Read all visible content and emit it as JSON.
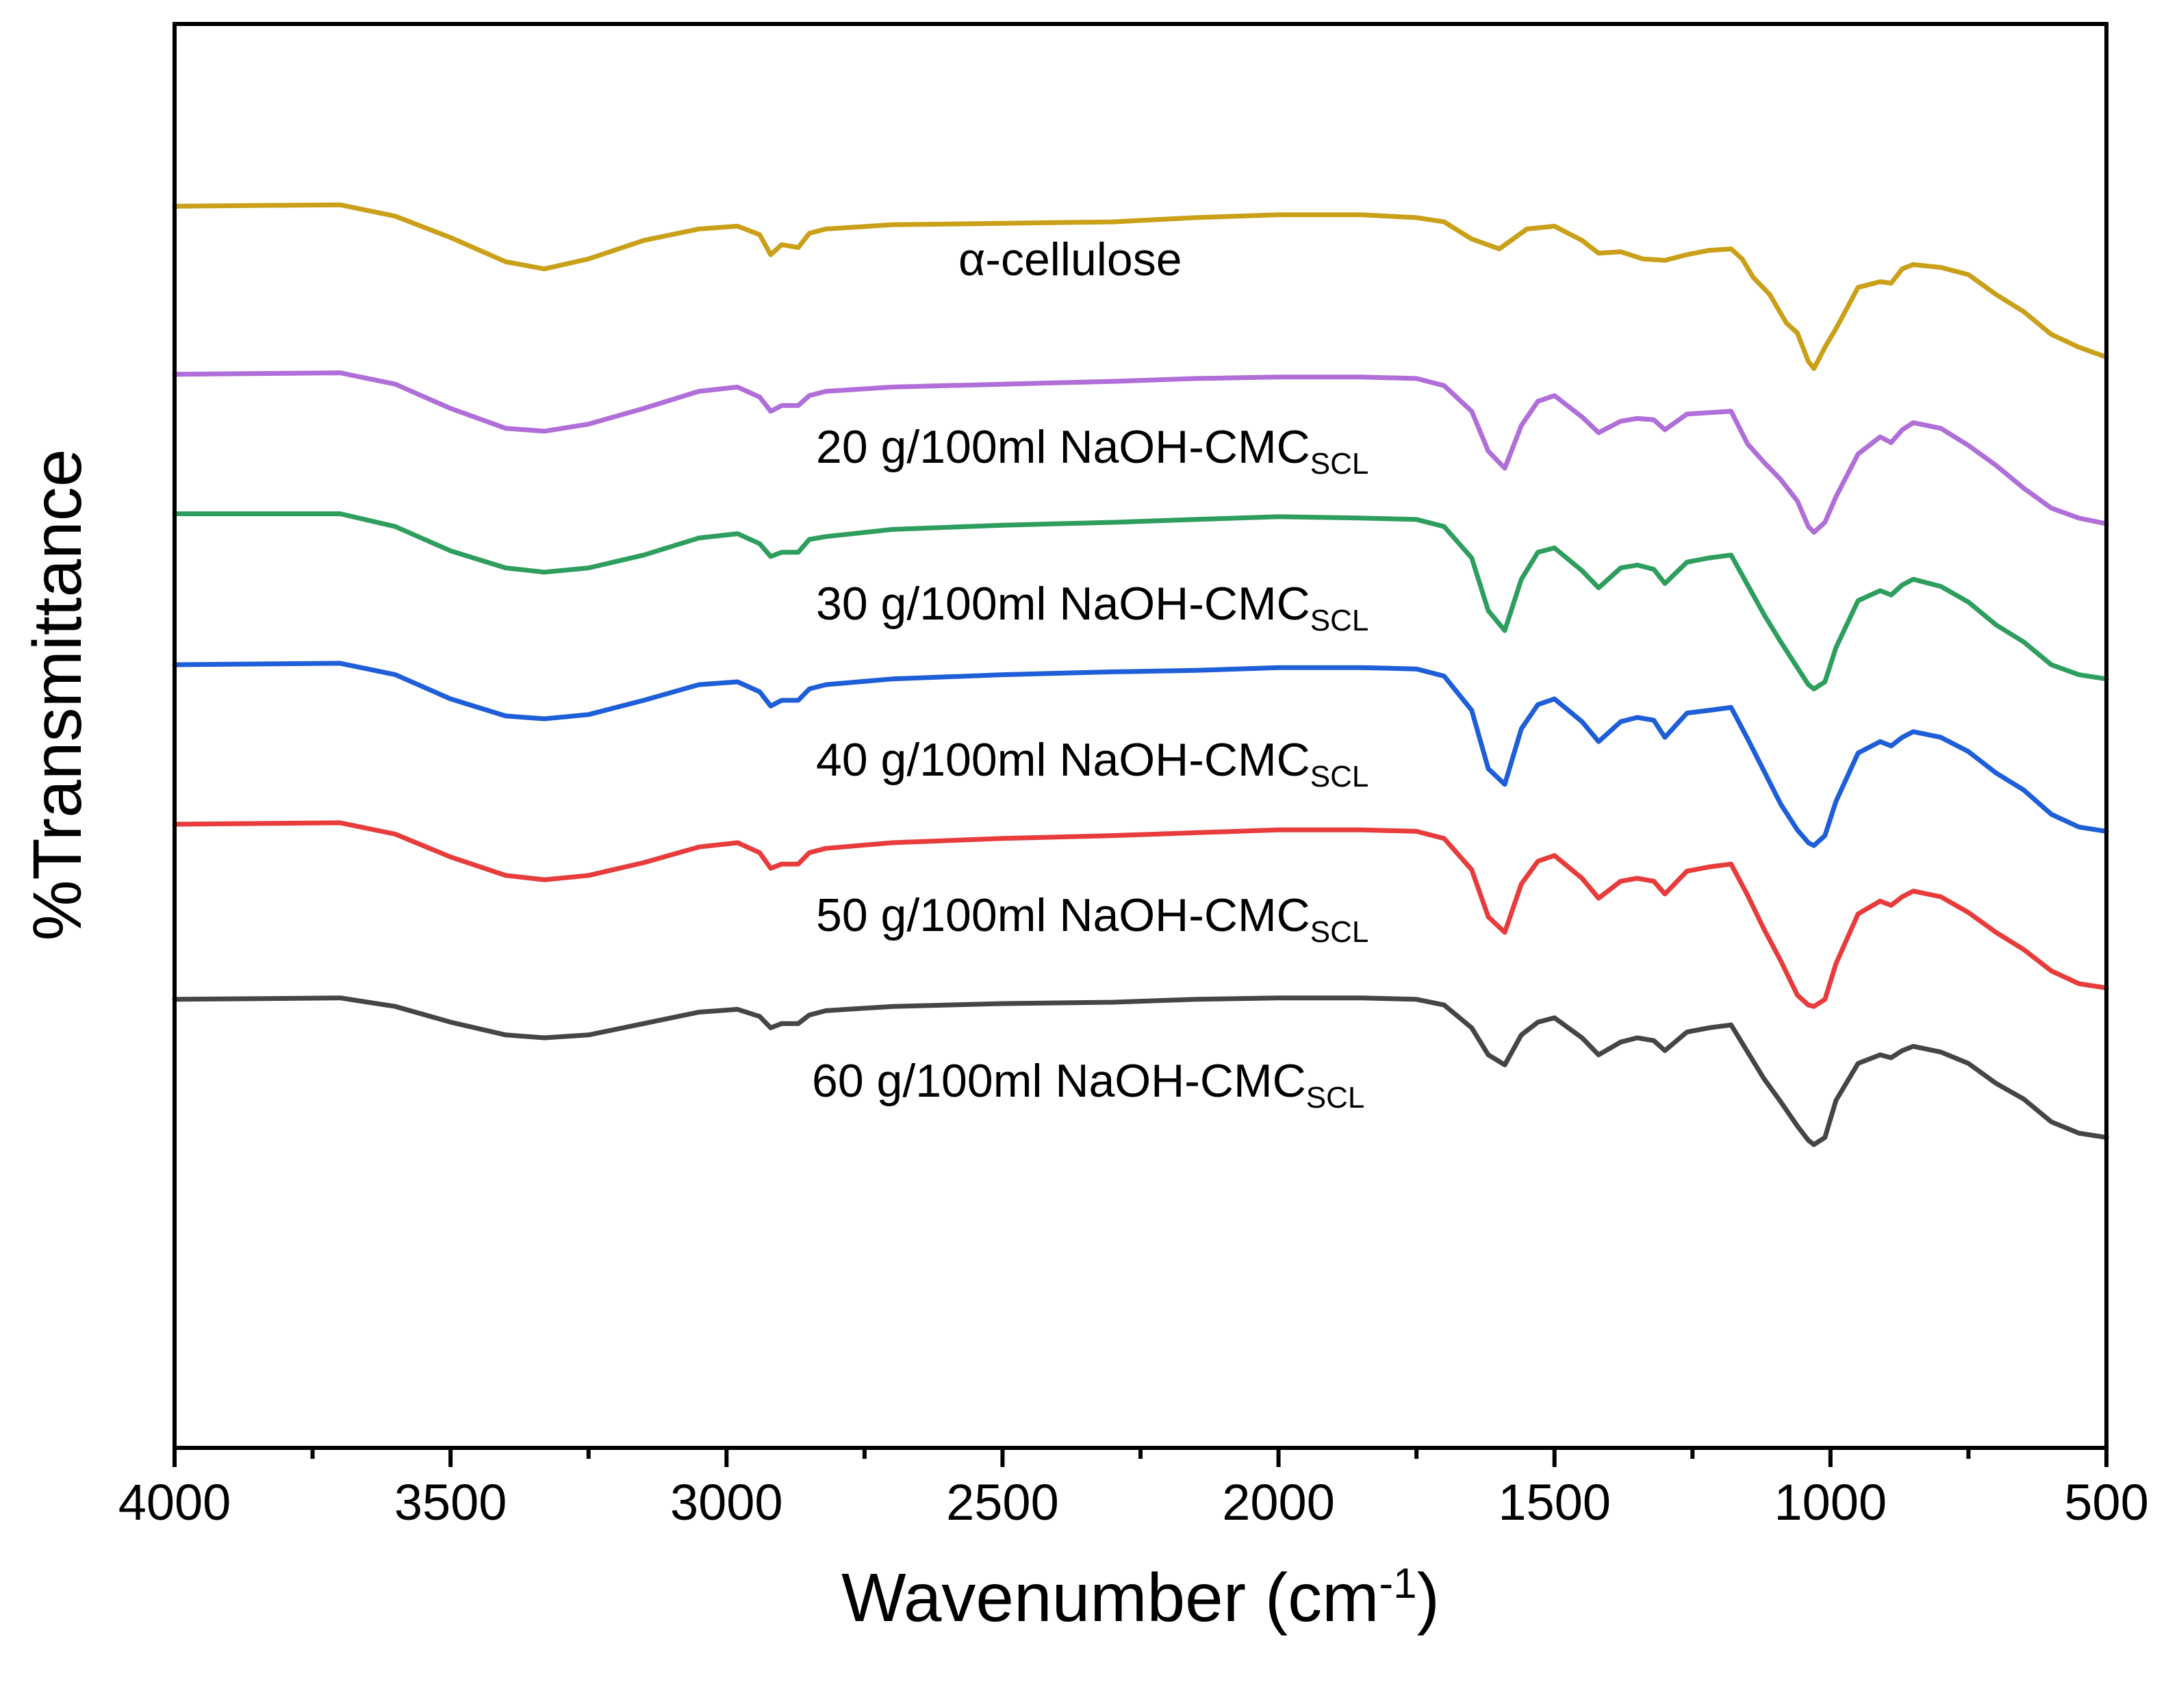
{
  "chart_data": {
    "type": "line",
    "title": "",
    "xlabel": "Wavenumber (cm",
    "xlabel_superscript": "-1",
    "xlabel_suffix": ")",
    "ylabel": "%Transmittance",
    "xlim": [
      4000,
      500
    ],
    "ylim": [
      0,
      100
    ],
    "x_reversed": true,
    "y_ticks_labeled": false,
    "x_ticks": [
      "4000",
      "3500",
      "3000",
      "2500",
      "2000",
      "1500",
      "1000",
      "500"
    ],
    "x_tick_values": [
      4000,
      3500,
      3000,
      2500,
      2000,
      1500,
      1000,
      500
    ],
    "minor_x_ticks": [
      3750,
      3250,
      2750,
      2250,
      1750,
      1250,
      750
    ],
    "grid": false,
    "legend": "inline labels next to each trace",
    "series": [
      {
        "name": "α-cellulose",
        "label_main": "α-cellulose",
        "label_sub": "",
        "color": "#C9A018",
        "x": [
          4000,
          3700,
          3600,
          3500,
          3400,
          3330,
          3250,
          3150,
          3050,
          2980,
          2940,
          2920,
          2900,
          2870,
          2850,
          2820,
          2700,
          2500,
          2300,
          2150,
          2000,
          1850,
          1750,
          1700,
          1650,
          1600,
          1550,
          1500,
          1450,
          1420,
          1380,
          1340,
          1300,
          1260,
          1220,
          1180,
          1160,
          1140,
          1110,
          1080,
          1060,
          1040,
          1030,
          1010,
          990,
          950,
          910,
          890,
          870,
          850,
          800,
          750,
          700,
          650,
          600,
          550,
          500
        ],
        "values": [
          87.2,
          87.3,
          86.5,
          85.0,
          83.3,
          82.8,
          83.5,
          84.8,
          85.6,
          85.8,
          85.2,
          83.8,
          84.5,
          84.3,
          85.3,
          85.6,
          85.9,
          86.0,
          86.1,
          86.4,
          86.6,
          86.6,
          86.4,
          86.1,
          84.9,
          84.2,
          85.6,
          85.8,
          84.8,
          83.9,
          84.0,
          83.5,
          83.4,
          83.8,
          84.1,
          84.2,
          83.5,
          82.2,
          81.0,
          79.0,
          78.3,
          76.3,
          75.8,
          77.3,
          78.6,
          81.5,
          81.9,
          81.8,
          82.8,
          83.1,
          82.9,
          82.4,
          81.0,
          79.8,
          78.2,
          77.3,
          76.6
        ]
      },
      {
        "name": "20 g/100ml NaOH-CMC_SCL",
        "label_main": "20 g/100ml NaOH-CMC",
        "label_sub": "SCL",
        "color": "#B06ED8",
        "x": [
          4000,
          3700,
          3600,
          3500,
          3400,
          3330,
          3250,
          3150,
          3050,
          2980,
          2940,
          2920,
          2900,
          2870,
          2850,
          2820,
          2700,
          2500,
          2300,
          2150,
          2000,
          1850,
          1750,
          1700,
          1650,
          1620,
          1590,
          1560,
          1530,
          1500,
          1450,
          1420,
          1380,
          1350,
          1320,
          1300,
          1260,
          1220,
          1180,
          1150,
          1120,
          1090,
          1060,
          1040,
          1030,
          1010,
          990,
          950,
          910,
          890,
          870,
          850,
          800,
          750,
          700,
          650,
          600,
          550,
          500
        ],
        "values": [
          75.4,
          75.5,
          74.7,
          73.0,
          71.6,
          71.4,
          71.9,
          73.0,
          74.2,
          74.5,
          73.8,
          72.8,
          73.2,
          73.2,
          73.9,
          74.2,
          74.5,
          74.7,
          74.9,
          75.1,
          75.2,
          75.2,
          75.1,
          74.6,
          72.8,
          70.0,
          68.8,
          71.8,
          73.5,
          73.9,
          72.4,
          71.3,
          72.1,
          72.3,
          72.2,
          71.5,
          72.6,
          72.7,
          72.8,
          70.5,
          69.2,
          68.0,
          66.5,
          64.7,
          64.3,
          65.0,
          66.8,
          69.8,
          71.0,
          70.6,
          71.5,
          72.0,
          71.6,
          70.4,
          69.0,
          67.4,
          66.0,
          65.3,
          64.9
        ]
      },
      {
        "name": "30 g/100ml NaOH-CMC_SCL",
        "label_main": "30 g/100ml NaOH-CMC",
        "label_sub": "SCL",
        "color": "#2E9E5E",
        "x": [
          4000,
          3700,
          3600,
          3500,
          3400,
          3330,
          3250,
          3150,
          3050,
          2980,
          2940,
          2920,
          2900,
          2870,
          2850,
          2820,
          2700,
          2500,
          2300,
          2150,
          2000,
          1850,
          1750,
          1700,
          1650,
          1620,
          1590,
          1560,
          1530,
          1500,
          1450,
          1420,
          1380,
          1350,
          1320,
          1300,
          1260,
          1220,
          1180,
          1150,
          1120,
          1090,
          1060,
          1040,
          1030,
          1010,
          990,
          950,
          910,
          890,
          870,
          850,
          800,
          750,
          700,
          650,
          600,
          550,
          500
        ],
        "values": [
          65.6,
          65.6,
          64.7,
          63.0,
          61.8,
          61.5,
          61.8,
          62.7,
          63.9,
          64.2,
          63.5,
          62.6,
          62.9,
          62.9,
          63.8,
          64.0,
          64.5,
          64.8,
          65.0,
          65.2,
          65.4,
          65.3,
          65.2,
          64.7,
          62.5,
          58.8,
          57.4,
          61.0,
          62.9,
          63.2,
          61.6,
          60.4,
          61.8,
          62.0,
          61.7,
          60.7,
          62.2,
          62.5,
          62.7,
          60.6,
          58.5,
          56.6,
          54.8,
          53.6,
          53.3,
          53.8,
          56.2,
          59.5,
          60.2,
          59.9,
          60.6,
          61.0,
          60.5,
          59.4,
          57.8,
          56.6,
          55.0,
          54.3,
          54.0
        ]
      },
      {
        "name": "40 g/100ml NaOH-CMC_SCL",
        "label_main": "40 g/100ml NaOH-CMC",
        "label_sub": "SCL",
        "color": "#1E5ED8",
        "x": [
          4000,
          3700,
          3600,
          3500,
          3400,
          3330,
          3250,
          3150,
          3050,
          2980,
          2940,
          2920,
          2900,
          2870,
          2850,
          2820,
          2700,
          2500,
          2300,
          2150,
          2000,
          1850,
          1750,
          1700,
          1650,
          1620,
          1590,
          1560,
          1530,
          1500,
          1450,
          1420,
          1380,
          1350,
          1320,
          1300,
          1260,
          1220,
          1180,
          1150,
          1120,
          1090,
          1060,
          1040,
          1030,
          1010,
          990,
          950,
          910,
          890,
          870,
          850,
          800,
          750,
          700,
          650,
          600,
          550,
          500
        ],
        "values": [
          55.0,
          55.1,
          54.3,
          52.6,
          51.4,
          51.2,
          51.5,
          52.5,
          53.6,
          53.8,
          53.1,
          52.1,
          52.5,
          52.5,
          53.3,
          53.6,
          54.0,
          54.3,
          54.5,
          54.6,
          54.8,
          54.8,
          54.7,
          54.2,
          51.8,
          47.7,
          46.6,
          50.5,
          52.2,
          52.6,
          51.0,
          49.6,
          51.0,
          51.3,
          51.1,
          49.9,
          51.6,
          51.8,
          52.0,
          49.8,
          47.5,
          45.2,
          43.4,
          42.5,
          42.3,
          43.0,
          45.4,
          48.8,
          49.6,
          49.3,
          49.9,
          50.3,
          49.9,
          48.9,
          47.4,
          46.2,
          44.5,
          43.6,
          43.3
        ]
      },
      {
        "name": "50 g/100ml NaOH-CMC_SCL",
        "label_main": "50 g/100ml NaOH-CMC",
        "label_sub": "SCL",
        "color": "#E83C3C",
        "x": [
          4000,
          3700,
          3600,
          3500,
          3400,
          3330,
          3250,
          3150,
          3050,
          2980,
          2940,
          2920,
          2900,
          2870,
          2850,
          2820,
          2700,
          2500,
          2300,
          2150,
          2000,
          1850,
          1750,
          1700,
          1650,
          1620,
          1590,
          1560,
          1530,
          1500,
          1450,
          1420,
          1380,
          1350,
          1320,
          1300,
          1260,
          1220,
          1180,
          1150,
          1120,
          1090,
          1060,
          1040,
          1030,
          1010,
          990,
          950,
          910,
          890,
          870,
          850,
          800,
          750,
          700,
          650,
          600,
          550,
          500
        ],
        "values": [
          43.8,
          43.9,
          43.1,
          41.5,
          40.2,
          39.9,
          40.2,
          41.1,
          42.2,
          42.5,
          41.8,
          40.7,
          41.0,
          41.0,
          41.8,
          42.1,
          42.5,
          42.8,
          43.0,
          43.2,
          43.4,
          43.4,
          43.3,
          42.8,
          40.6,
          37.3,
          36.2,
          39.6,
          41.2,
          41.6,
          40.0,
          38.6,
          39.8,
          40.0,
          39.8,
          38.9,
          40.5,
          40.8,
          41.0,
          38.8,
          36.4,
          34.2,
          31.8,
          31.1,
          31.0,
          31.5,
          34.0,
          37.5,
          38.4,
          38.1,
          38.7,
          39.1,
          38.7,
          37.6,
          36.2,
          35.0,
          33.5,
          32.6,
          32.3
        ]
      },
      {
        "name": "60 g/100ml NaOH-CMC_SCL",
        "label_main": "60 g/100ml NaOH-CMC",
        "label_sub": "SCL",
        "color": "#454545",
        "x": [
          4000,
          3700,
          3600,
          3500,
          3400,
          3330,
          3250,
          3150,
          3050,
          2980,
          2940,
          2920,
          2900,
          2870,
          2850,
          2820,
          2700,
          2500,
          2300,
          2150,
          2000,
          1850,
          1750,
          1700,
          1650,
          1620,
          1590,
          1560,
          1530,
          1500,
          1450,
          1420,
          1380,
          1350,
          1320,
          1300,
          1260,
          1220,
          1180,
          1150,
          1120,
          1090,
          1060,
          1040,
          1030,
          1010,
          990,
          950,
          910,
          890,
          870,
          850,
          800,
          750,
          700,
          650,
          600,
          550,
          500
        ],
        "values": [
          31.5,
          31.6,
          31.0,
          29.9,
          29.0,
          28.8,
          29.0,
          29.8,
          30.6,
          30.8,
          30.3,
          29.5,
          29.8,
          29.8,
          30.4,
          30.7,
          31.0,
          31.2,
          31.3,
          31.5,
          31.6,
          31.6,
          31.5,
          31.1,
          29.5,
          27.6,
          26.9,
          29.0,
          29.9,
          30.2,
          28.8,
          27.6,
          28.5,
          28.8,
          28.6,
          27.9,
          29.2,
          29.5,
          29.7,
          27.8,
          25.9,
          24.3,
          22.6,
          21.6,
          21.3,
          21.8,
          24.4,
          27.0,
          27.6,
          27.4,
          27.9,
          28.2,
          27.8,
          27.0,
          25.6,
          24.5,
          22.9,
          22.1,
          21.8
        ]
      }
    ]
  }
}
